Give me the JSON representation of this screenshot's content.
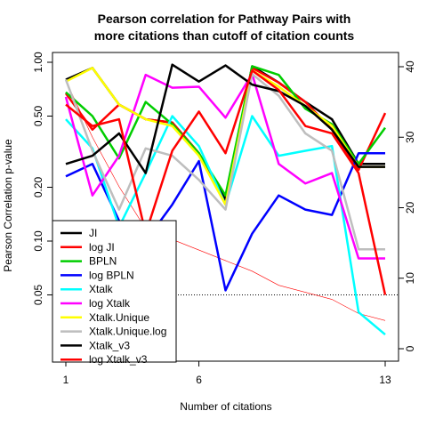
{
  "chart_data": {
    "type": "line",
    "title": [
      "Pearson correlation for Pathway Pairs with",
      "more citations than cutoff of citation counts"
    ],
    "xlabel": "Number of citations",
    "ylabel": "Pearson Correlation p-value",
    "x": [
      1,
      2,
      3,
      4,
      5,
      6,
      7,
      8,
      9,
      10,
      11,
      12,
      13
    ],
    "xticks": [
      "1",
      "6",
      "13"
    ],
    "xtick_values": [
      1,
      6,
      13
    ],
    "y_left_scale": "log",
    "y_left_lim": [
      0.025,
      1.0
    ],
    "y_left_ticks": [
      "0.05",
      "0.10",
      "0.20",
      "0.50",
      "1.00"
    ],
    "y_left_tick_values": [
      0.05,
      0.1,
      0.2,
      0.5,
      1.0
    ],
    "y_right_lim": [
      0,
      40
    ],
    "y_right_ticks": [
      "0",
      "10",
      "20",
      "30",
      "40"
    ],
    "y_right_tick_values": [
      0,
      10,
      20,
      30,
      40
    ],
    "threshold_line": {
      "value": 0.05,
      "style": "dotted",
      "color": "#000000"
    },
    "count_line": {
      "color": "#ff0000",
      "axis": "right",
      "values": [
        38,
        30,
        23,
        17,
        15.5,
        14,
        12.5,
        11,
        9,
        8,
        7,
        5,
        4
      ]
    },
    "series": [
      {
        "name": "JI",
        "color": "#000000",
        "values": [
          0.8,
          0.93,
          0.58,
          0.48,
          0.46,
          0.31,
          0.17,
          0.95,
          0.77,
          0.6,
          0.48,
          0.27,
          0.27
        ]
      },
      {
        "name": "log JI",
        "color": "#ff0000",
        "values": [
          0.67,
          0.42,
          0.58,
          0.48,
          0.46,
          0.31,
          0.16,
          0.93,
          0.77,
          0.6,
          0.42,
          0.25,
          0.52
        ]
      },
      {
        "name": "BPLN",
        "color": "#00cd00",
        "values": [
          0.68,
          0.5,
          0.29,
          0.6,
          0.45,
          0.31,
          0.18,
          0.95,
          0.85,
          0.55,
          0.45,
          0.27,
          0.43
        ]
      },
      {
        "name": "log BPLN",
        "color": "#0000ff",
        "values": [
          0.23,
          0.27,
          0.13,
          0.1,
          0.16,
          0.28,
          0.053,
          0.11,
          0.18,
          0.15,
          0.14,
          0.31,
          0.31
        ]
      },
      {
        "name": "Xtalk",
        "color": "#00ffff",
        "values": [
          0.48,
          0.33,
          0.12,
          0.24,
          0.5,
          0.34,
          0.16,
          0.5,
          0.3,
          0.32,
          0.34,
          0.04,
          0.03
        ]
      },
      {
        "name": "log Xtalk",
        "color": "#ff00ff",
        "values": [
          0.64,
          0.18,
          0.3,
          0.85,
          0.72,
          0.73,
          0.49,
          0.86,
          0.27,
          0.21,
          0.24,
          0.08,
          0.08
        ]
      },
      {
        "name": "Xtalk.Unique",
        "color": "#ffff00",
        "values": [
          0.78,
          0.93,
          0.58,
          0.48,
          0.44,
          0.3,
          0.16,
          0.9,
          0.73,
          0.57,
          0.44,
          0.26,
          0.26
        ]
      },
      {
        "name": "Xtalk.Unique.log",
        "color": "#bebebe",
        "values": [
          0.8,
          0.32,
          0.15,
          0.33,
          0.3,
          0.22,
          0.15,
          0.86,
          0.65,
          0.4,
          0.32,
          0.09,
          0.09
        ]
      },
      {
        "name": "Xtalk_v3",
        "color": "#000000",
        "values": [
          0.27,
          0.3,
          0.4,
          0.24,
          0.97,
          0.78,
          0.96,
          0.75,
          0.69,
          0.57,
          0.42,
          0.26,
          0.26
        ]
      },
      {
        "name": "log Xtalk_v3",
        "color": "#ff0000",
        "values": [
          0.58,
          0.44,
          0.48,
          0.11,
          0.32,
          0.53,
          0.31,
          0.9,
          0.7,
          0.44,
          0.4,
          0.24,
          0.05
        ]
      }
    ],
    "legend": {
      "placement": "bottom-left"
    }
  }
}
